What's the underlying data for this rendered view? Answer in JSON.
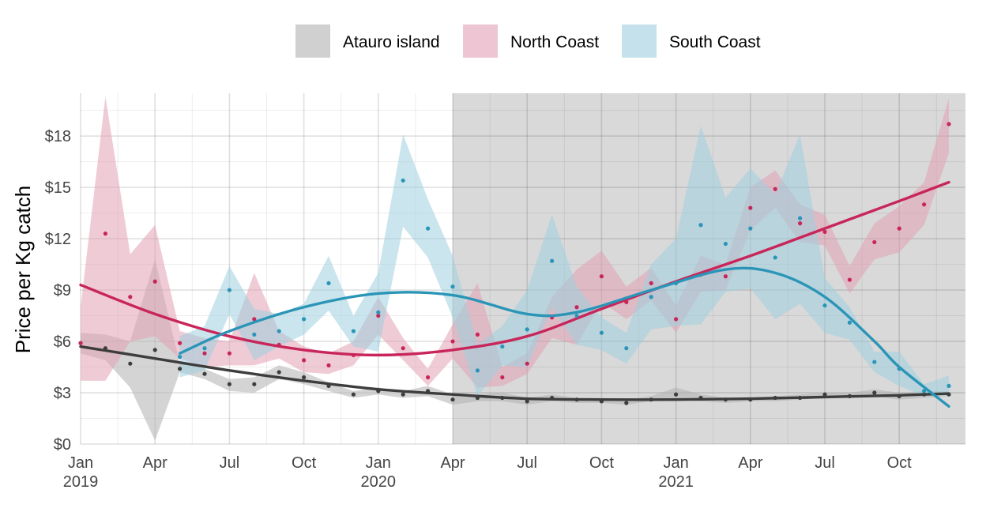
{
  "chart_data": {
    "type": "line",
    "xlabel": "",
    "ylabel": "Price per Kg catch",
    "ylim": [
      0,
      20.5
    ],
    "xlim": [
      "2019-01",
      "2021-12"
    ],
    "y_ticks": [
      0,
      3,
      6,
      9,
      12,
      15,
      18
    ],
    "y_tick_labels": [
      "$0",
      "$3",
      "$6",
      "$9",
      "$12",
      "$15",
      "$18"
    ],
    "x_ticks": [
      {
        "month": "2019-01",
        "label": "Jan",
        "year": "2019"
      },
      {
        "month": "2019-04",
        "label": "Apr",
        "year": ""
      },
      {
        "month": "2019-07",
        "label": "Jul",
        "year": ""
      },
      {
        "month": "2019-10",
        "label": "Oct",
        "year": ""
      },
      {
        "month": "2020-01",
        "label": "Jan",
        "year": "2020"
      },
      {
        "month": "2020-04",
        "label": "Apr",
        "year": ""
      },
      {
        "month": "2020-07",
        "label": "Jul",
        "year": ""
      },
      {
        "month": "2020-10",
        "label": "Oct",
        "year": ""
      },
      {
        "month": "2021-01",
        "label": "Jan",
        "year": "2021"
      },
      {
        "month": "2021-04",
        "label": "Apr",
        "year": ""
      },
      {
        "month": "2021-07",
        "label": "Jul",
        "year": ""
      },
      {
        "month": "2021-10",
        "label": "Oct",
        "year": ""
      }
    ],
    "shaded_period": {
      "start": "2020-04",
      "end": "2021-12",
      "color": "#d9d9d9"
    },
    "grid": true,
    "legend_position": "top",
    "series": [
      {
        "name": "Atauro island",
        "color": "#3d3d3d",
        "band_color": "#b0b0b0",
        "points": [
          {
            "month": "2019-01",
            "value": 5.9,
            "low": 5.3,
            "high": 6.5
          },
          {
            "month": "2019-02",
            "value": 5.6,
            "low": 4.9,
            "high": 6.4
          },
          {
            "month": "2019-03",
            "value": 4.7,
            "low": 3.3,
            "high": 6.0
          },
          {
            "month": "2019-04",
            "value": 5.5,
            "low": 0.2,
            "high": 10.8
          },
          {
            "month": "2019-05",
            "value": 4.4,
            "low": 4.2,
            "high": 4.7
          },
          {
            "month": "2019-06",
            "value": 4.1,
            "low": 3.8,
            "high": 4.4
          },
          {
            "month": "2019-07",
            "value": 3.5,
            "low": 3.1,
            "high": 3.8
          },
          {
            "month": "2019-08",
            "value": 3.5,
            "low": 3.0,
            "high": 3.9
          },
          {
            "month": "2019-09",
            "value": 4.2,
            "low": 3.8,
            "high": 4.6
          },
          {
            "month": "2019-10",
            "value": 3.9,
            "low": 3.5,
            "high": 4.2
          },
          {
            "month": "2019-11",
            "value": 3.4,
            "low": 3.1,
            "high": 3.6
          },
          {
            "month": "2019-12",
            "value": 2.9,
            "low": 2.7,
            "high": 3.1
          },
          {
            "month": "2020-01",
            "value": 3.1,
            "low": 2.9,
            "high": 3.3
          },
          {
            "month": "2020-02",
            "value": 2.9,
            "low": 2.7,
            "high": 3.1
          },
          {
            "month": "2020-03",
            "value": 3.1,
            "low": 2.8,
            "high": 3.4
          },
          {
            "month": "2020-04",
            "value": 2.6,
            "low": 2.3,
            "high": 2.9
          },
          {
            "month": "2020-05",
            "value": 2.7,
            "low": 2.5,
            "high": 2.9
          },
          {
            "month": "2020-06",
            "value": 2.7,
            "low": 2.5,
            "high": 3.0
          },
          {
            "month": "2020-07",
            "value": 2.5,
            "low": 2.3,
            "high": 2.7
          },
          {
            "month": "2020-08",
            "value": 2.7,
            "low": 2.5,
            "high": 2.9
          },
          {
            "month": "2020-09",
            "value": 2.6,
            "low": 2.4,
            "high": 2.7
          },
          {
            "month": "2020-10",
            "value": 2.5,
            "low": 2.4,
            "high": 2.7
          },
          {
            "month": "2020-11",
            "value": 2.4,
            "low": 2.3,
            "high": 2.6
          },
          {
            "month": "2020-12",
            "value": 2.6,
            "low": 2.5,
            "high": 2.8
          },
          {
            "month": "2021-01",
            "value": 2.9,
            "low": 2.6,
            "high": 3.3
          },
          {
            "month": "2021-02",
            "value": 2.7,
            "low": 2.5,
            "high": 2.9
          },
          {
            "month": "2021-03",
            "value": 2.6,
            "low": 2.4,
            "high": 2.7
          },
          {
            "month": "2021-04",
            "value": 2.6,
            "low": 2.5,
            "high": 2.7
          },
          {
            "month": "2021-05",
            "value": 2.7,
            "low": 2.5,
            "high": 2.8
          },
          {
            "month": "2021-06",
            "value": 2.7,
            "low": 2.6,
            "high": 2.9
          },
          {
            "month": "2021-07",
            "value": 2.9,
            "low": 2.7,
            "high": 3.0
          },
          {
            "month": "2021-08",
            "value": 2.8,
            "low": 2.7,
            "high": 3.0
          },
          {
            "month": "2021-09",
            "value": 3.0,
            "low": 2.8,
            "high": 3.2
          },
          {
            "month": "2021-10",
            "value": 2.8,
            "low": 2.6,
            "high": 3.0
          },
          {
            "month": "2021-11",
            "value": 2.9,
            "low": 2.7,
            "high": 3.1
          },
          {
            "month": "2021-12",
            "value": 2.9,
            "low": 2.8,
            "high": 3.1
          }
        ],
        "trend": [
          {
            "month": "2019-01",
            "value": 5.7
          },
          {
            "month": "2019-04",
            "value": 5.0
          },
          {
            "month": "2019-07",
            "value": 4.3
          },
          {
            "month": "2019-10",
            "value": 3.7
          },
          {
            "month": "2020-01",
            "value": 3.2
          },
          {
            "month": "2020-04",
            "value": 2.9
          },
          {
            "month": "2020-07",
            "value": 2.65
          },
          {
            "month": "2020-10",
            "value": 2.6
          },
          {
            "month": "2021-01",
            "value": 2.6
          },
          {
            "month": "2021-04",
            "value": 2.65
          },
          {
            "month": "2021-07",
            "value": 2.75
          },
          {
            "month": "2021-10",
            "value": 2.85
          },
          {
            "month": "2021-12",
            "value": 2.95
          }
        ]
      },
      {
        "name": "North Coast",
        "color": "#c8265a",
        "band_color": "#e2a0b5",
        "points": [
          {
            "month": "2019-01",
            "value": 5.9,
            "low": 3.7,
            "high": 8.0
          },
          {
            "month": "2019-02",
            "value": 12.3,
            "low": 3.7,
            "high": 20.3
          },
          {
            "month": "2019-03",
            "value": 8.6,
            "low": 6.0,
            "high": 11.1
          },
          {
            "month": "2019-04",
            "value": 9.5,
            "low": 6.3,
            "high": 12.8
          },
          {
            "month": "2019-05",
            "value": 5.9,
            "low": 5.0,
            "high": 6.6
          },
          {
            "month": "2019-06",
            "value": 5.3,
            "low": 4.5,
            "high": 6.2
          },
          {
            "month": "2019-07",
            "value": 5.3,
            "low": 4.6,
            "high": 6.0
          },
          {
            "month": "2019-08",
            "value": 7.3,
            "low": 4.6,
            "high": 10.0
          },
          {
            "month": "2019-09",
            "value": 5.8,
            "low": 5.0,
            "high": 6.6
          },
          {
            "month": "2019-10",
            "value": 4.9,
            "low": 4.2,
            "high": 5.7
          },
          {
            "month": "2019-11",
            "value": 4.6,
            "low": 4.1,
            "high": 5.3
          },
          {
            "month": "2019-12",
            "value": 5.2,
            "low": 4.6,
            "high": 6.0
          },
          {
            "month": "2020-01",
            "value": 7.5,
            "low": 6.4,
            "high": 8.6
          },
          {
            "month": "2020-02",
            "value": 5.6,
            "low": 4.9,
            "high": 6.2
          },
          {
            "month": "2020-03",
            "value": 3.9,
            "low": 3.4,
            "high": 4.4
          },
          {
            "month": "2020-04",
            "value": 6.0,
            "low": 5.0,
            "high": 7.0
          },
          {
            "month": "2020-05",
            "value": 6.4,
            "low": 3.3,
            "high": 9.4
          },
          {
            "month": "2020-06",
            "value": 3.9,
            "low": 3.4,
            "high": 4.5
          },
          {
            "month": "2020-07",
            "value": 4.7,
            "low": 4.1,
            "high": 5.3
          },
          {
            "month": "2020-08",
            "value": 7.4,
            "low": 6.2,
            "high": 8.6
          },
          {
            "month": "2020-09",
            "value": 8.0,
            "low": 5.8,
            "high": 10.2
          },
          {
            "month": "2020-10",
            "value": 9.8,
            "low": 8.3,
            "high": 11.3
          },
          {
            "month": "2020-11",
            "value": 8.3,
            "low": 7.3,
            "high": 9.2
          },
          {
            "month": "2020-12",
            "value": 9.4,
            "low": 8.4,
            "high": 10.3
          },
          {
            "month": "2021-01",
            "value": 7.3,
            "low": 6.5,
            "high": 8.1
          },
          {
            "month": "2021-02",
            "value": 9.9,
            "low": 8.9,
            "high": 11.0
          },
          {
            "month": "2021-03",
            "value": 9.8,
            "low": 9.0,
            "high": 10.5
          },
          {
            "month": "2021-04",
            "value": 13.8,
            "low": 12.5,
            "high": 15.0
          },
          {
            "month": "2021-05",
            "value": 14.9,
            "low": 13.8,
            "high": 16.0
          },
          {
            "month": "2021-06",
            "value": 12.9,
            "low": 11.8,
            "high": 14.0
          },
          {
            "month": "2021-07",
            "value": 12.4,
            "low": 11.6,
            "high": 13.4
          },
          {
            "month": "2021-08",
            "value": 9.6,
            "low": 8.8,
            "high": 10.4
          },
          {
            "month": "2021-09",
            "value": 11.8,
            "low": 10.8,
            "high": 12.9
          },
          {
            "month": "2021-10",
            "value": 12.6,
            "low": 11.2,
            "high": 13.9
          },
          {
            "month": "2021-11",
            "value": 14.0,
            "low": 12.8,
            "high": 15.3
          },
          {
            "month": "2021-12",
            "value": 18.7,
            "low": 17.0,
            "high": 20.2
          }
        ],
        "trend": [
          {
            "month": "2019-01",
            "value": 9.3
          },
          {
            "month": "2019-04",
            "value": 7.6
          },
          {
            "month": "2019-07",
            "value": 6.3
          },
          {
            "month": "2019-10",
            "value": 5.5
          },
          {
            "month": "2020-01",
            "value": 5.2
          },
          {
            "month": "2020-04",
            "value": 5.5
          },
          {
            "month": "2020-07",
            "value": 6.3
          },
          {
            "month": "2020-10",
            "value": 7.9
          },
          {
            "month": "2021-01",
            "value": 9.5
          },
          {
            "month": "2021-04",
            "value": 11.0
          },
          {
            "month": "2021-07",
            "value": 12.6
          },
          {
            "month": "2021-10",
            "value": 14.2
          },
          {
            "month": "2021-12",
            "value": 15.3
          }
        ]
      },
      {
        "name": "South Coast",
        "color": "#2b95b8",
        "band_color": "#9fcfdf",
        "points": [
          {
            "month": "2019-05",
            "value": 5.1,
            "low": 3.9,
            "high": 6.3
          },
          {
            "month": "2019-06",
            "value": 5.6,
            "low": 4.3,
            "high": 6.9
          },
          {
            "month": "2019-07",
            "value": 9.0,
            "low": 7.6,
            "high": 10.4
          },
          {
            "month": "2019-08",
            "value": 6.4,
            "low": 4.9,
            "high": 7.9
          },
          {
            "month": "2019-09",
            "value": 6.6,
            "low": 5.7,
            "high": 7.6
          },
          {
            "month": "2019-10",
            "value": 7.3,
            "low": 6.4,
            "high": 8.2
          },
          {
            "month": "2019-11",
            "value": 9.4,
            "low": 7.8,
            "high": 11.0
          },
          {
            "month": "2019-12",
            "value": 6.6,
            "low": 5.7,
            "high": 7.5
          },
          {
            "month": "2020-01",
            "value": 7.7,
            "low": 5.4,
            "high": 10.0
          },
          {
            "month": "2020-02",
            "value": 15.4,
            "low": 12.7,
            "high": 18.1
          },
          {
            "month": "2020-03",
            "value": 12.6,
            "low": 10.9,
            "high": 14.3
          },
          {
            "month": "2020-04",
            "value": 9.2,
            "low": 7.4,
            "high": 11.0
          },
          {
            "month": "2020-05",
            "value": 4.3,
            "low": 2.8,
            "high": 5.8
          },
          {
            "month": "2020-06",
            "value": 5.7,
            "low": 4.6,
            "high": 6.9
          },
          {
            "month": "2020-07",
            "value": 6.7,
            "low": 4.5,
            "high": 9.0
          },
          {
            "month": "2020-08",
            "value": 10.7,
            "low": 8.0,
            "high": 13.4
          },
          {
            "month": "2020-09",
            "value": 7.5,
            "low": 5.8,
            "high": 9.2
          },
          {
            "month": "2020-10",
            "value": 6.5,
            "low": 5.5,
            "high": 7.4
          },
          {
            "month": "2020-11",
            "value": 5.6,
            "low": 4.7,
            "high": 6.5
          },
          {
            "month": "2020-12",
            "value": 8.6,
            "low": 6.7,
            "high": 10.5
          },
          {
            "month": "2021-01",
            "value": 9.4,
            "low": 6.9,
            "high": 12.0
          },
          {
            "month": "2021-02",
            "value": 12.8,
            "low": 7.0,
            "high": 18.6
          },
          {
            "month": "2021-03",
            "value": 11.7,
            "low": 8.9,
            "high": 14.4
          },
          {
            "month": "2021-04",
            "value": 12.6,
            "low": 9.1,
            "high": 16.1
          },
          {
            "month": "2021-05",
            "value": 10.9,
            "low": 7.3,
            "high": 14.6
          },
          {
            "month": "2021-06",
            "value": 13.2,
            "low": 8.2,
            "high": 18.1
          },
          {
            "month": "2021-07",
            "value": 8.1,
            "low": 6.5,
            "high": 9.7
          },
          {
            "month": "2021-08",
            "value": 7.1,
            "low": 6.1,
            "high": 8.0
          },
          {
            "month": "2021-09",
            "value": 4.8,
            "low": 4.2,
            "high": 5.4
          },
          {
            "month": "2021-10",
            "value": 4.4,
            "low": 3.4,
            "high": 5.4
          },
          {
            "month": "2021-11",
            "value": 3.1,
            "low": 2.8,
            "high": 3.5
          },
          {
            "month": "2021-12",
            "value": 3.4,
            "low": 2.8,
            "high": 4.0
          }
        ],
        "trend": [
          {
            "month": "2019-05",
            "value": 5.3
          },
          {
            "month": "2019-07",
            "value": 6.6
          },
          {
            "month": "2019-10",
            "value": 8.0
          },
          {
            "month": "2020-01",
            "value": 8.8
          },
          {
            "month": "2020-04",
            "value": 8.7
          },
          {
            "month": "2020-07",
            "value": 7.6
          },
          {
            "month": "2020-09",
            "value": 7.7
          },
          {
            "month": "2020-12",
            "value": 9.0
          },
          {
            "month": "2021-03",
            "value": 10.2
          },
          {
            "month": "2021-05",
            "value": 10.0
          },
          {
            "month": "2021-07",
            "value": 8.6
          },
          {
            "month": "2021-09",
            "value": 6.0
          },
          {
            "month": "2021-10",
            "value": 4.5
          },
          {
            "month": "2021-12",
            "value": 2.2
          }
        ]
      }
    ]
  }
}
